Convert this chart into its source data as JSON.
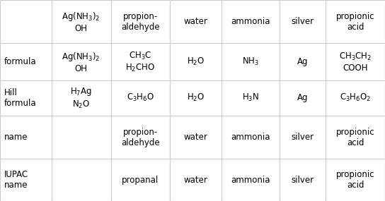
{
  "col_headers": [
    "Ag(NH$_3$)$_2$\nOH",
    "propion-\naldehyde",
    "water",
    "ammonia",
    "silver",
    "propionic\nacid"
  ],
  "row_headers": [
    "formula",
    "Hill\nformula",
    "name",
    "IUPAC\nname"
  ],
  "cells": [
    [
      "Ag(NH$_3$)$_2$\nOH",
      "CH$_3$C\nH$_2$CHO",
      "H$_2$O",
      "NH$_3$",
      "Ag",
      "CH$_3$CH$_2$\nCOOH"
    ],
    [
      "H$_7$Ag\nN$_2$O",
      "C$_3$H$_6$O",
      "H$_2$O",
      "H$_3$N",
      "Ag",
      "C$_3$H$_6$O$_2$"
    ],
    [
      "",
      "propion-\naldehyde",
      "water",
      "ammonia",
      "silver",
      "propionic\nacid"
    ],
    [
      "",
      "propanal",
      "water",
      "ammonia",
      "silver",
      "propionic\nacid"
    ]
  ],
  "bg_color": "#ffffff",
  "text_color": "#000000",
  "grid_color": "#cccccc",
  "font_size": 8.5
}
